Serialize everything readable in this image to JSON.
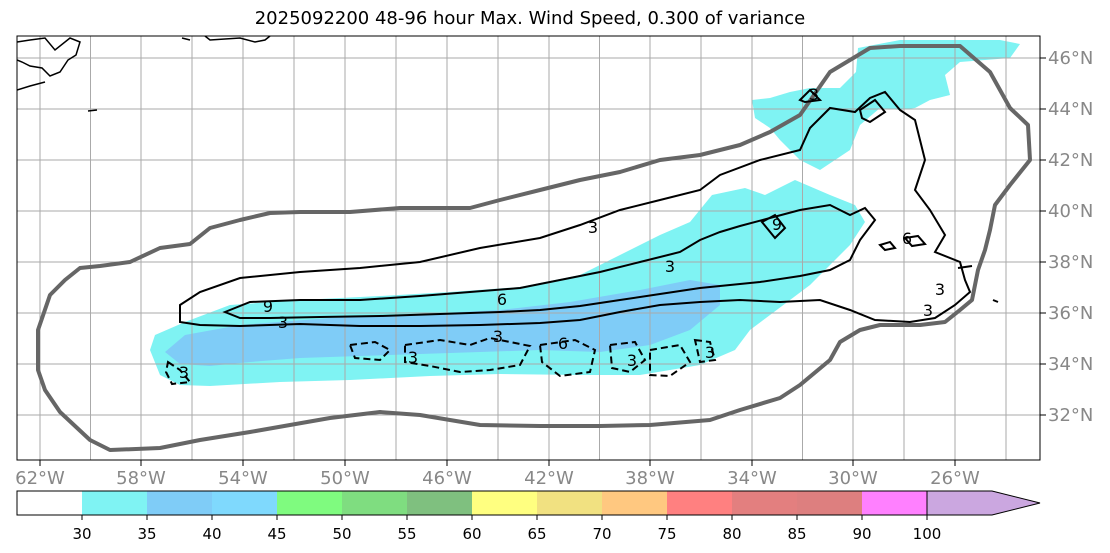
{
  "title": "2025092200 48-96 hour Max. Wind Speed, 0.300 of variance",
  "map": {
    "lon_labels": [
      "62°W",
      "58°W",
      "54°W",
      "50°W",
      "46°W",
      "42°W",
      "38°W",
      "34°W",
      "30°W",
      "26°W"
    ],
    "lat_labels": [
      "46°N",
      "44°N",
      "42°N",
      "40°N",
      "38°N",
      "36°N",
      "34°N",
      "32°N"
    ],
    "contour_labels": [
      "3",
      "6",
      "9",
      "3",
      "6",
      "3",
      "3",
      "6",
      "9",
      "3",
      "3",
      "3",
      "3",
      "3",
      "3",
      "3"
    ],
    "colors": {
      "fill_30_35": "#7ff3f3",
      "fill_35_40": "#7fccf7",
      "contour_line": "#000000",
      "cone_outline": "#666666",
      "grid": "#aaaaaa",
      "lat_label": "#888888"
    }
  },
  "colorbar": {
    "tick_labels": [
      "30",
      "35",
      "40",
      "45",
      "50",
      "55",
      "60",
      "65",
      "70",
      "75",
      "80",
      "85",
      "90",
      "100"
    ],
    "colors": [
      "#ffffff",
      "#7ff3f3",
      "#7fccf7",
      "#7fd9fd",
      "#7ffb7f",
      "#7fdd80",
      "#7fc07f",
      "#ffff80",
      "#f1e181",
      "#ffc880",
      "#ff8080",
      "#e37f7f",
      "#dd7f7f",
      "#ff80ff",
      "#cba7e0"
    ],
    "extend": "max"
  }
}
